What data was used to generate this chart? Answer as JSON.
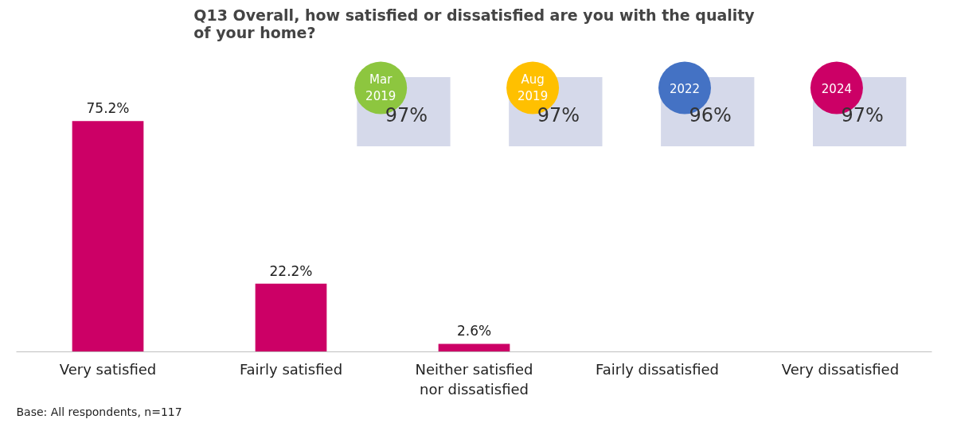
{
  "chart_data": {
    "type": "bar",
    "title": "Q13 Overall, how satisfied or dissatisfied are you with the quality of your home?",
    "categories": [
      "Very satisfied",
      "Fairly satisfied",
      "Neither satisfied nor dissatisfied",
      "Fairly dissatisfied",
      "Very dissatisfied"
    ],
    "values": [
      75.2,
      22.2,
      2.6,
      null,
      null
    ],
    "value_labels": [
      "75.2%",
      "22.2%",
      "2.6%",
      null,
      null
    ],
    "color": "#cc0066",
    "tick_labels": "x",
    "grid": false,
    "annotations": [
      "Mar 2019",
      "97%",
      "Aug 2019",
      "97%",
      "2022",
      "96%",
      "2024",
      "97%",
      "Base: All respondents, n=117"
    ]
  }
}
